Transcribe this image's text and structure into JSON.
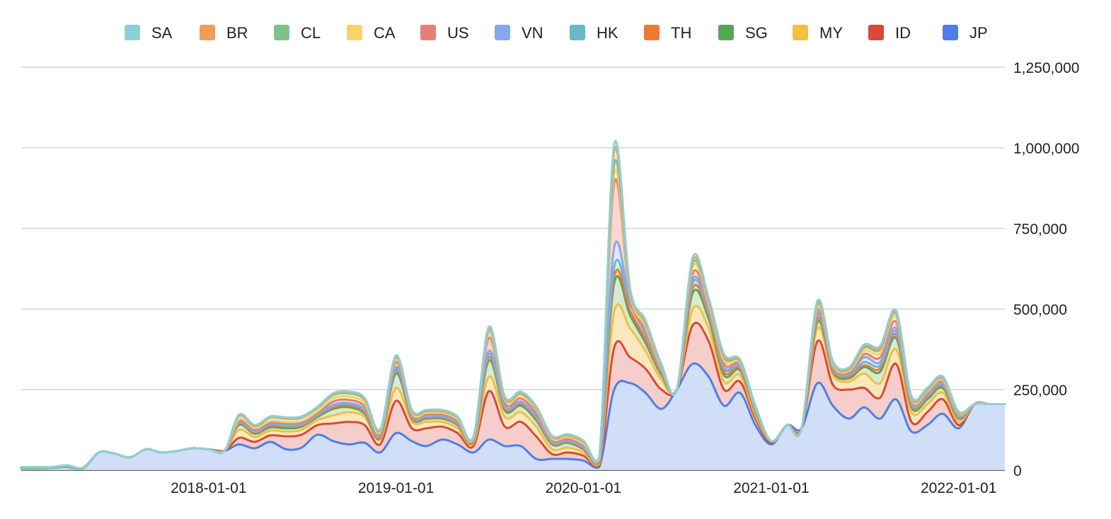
{
  "chart_data": {
    "type": "area",
    "stacked": true,
    "smooth": true,
    "title": "",
    "xlabel": "",
    "ylabel": "",
    "y_axis_position": "right",
    "ylim": [
      0,
      1250000
    ],
    "y_ticks": [
      {
        "value": 0,
        "label": "0"
      },
      {
        "value": 250000,
        "label": "250,000"
      },
      {
        "value": 500000,
        "label": "500,000"
      },
      {
        "value": 750000,
        "label": "750,000"
      },
      {
        "value": 1000000,
        "label": "1,000,000"
      },
      {
        "value": 1250000,
        "label": "1,250,000"
      }
    ],
    "x_ticks": [
      {
        "value": "2018-01-01",
        "label": "2018-01-01"
      },
      {
        "value": "2019-01-01",
        "label": "2019-01-01"
      },
      {
        "value": "2020-01-01",
        "label": "2020-01-01"
      },
      {
        "value": "2021-01-01",
        "label": "2021-01-01"
      },
      {
        "value": "2022-01-01",
        "label": "2022-01-01"
      }
    ],
    "xlim": [
      "2017-01-01",
      "2022-04-01"
    ],
    "grid": true,
    "legend_position": "top",
    "legend_order": [
      "SA",
      "BR",
      "CL",
      "CA",
      "US",
      "VN",
      "HK",
      "TH",
      "SG",
      "MY",
      "ID",
      "JP"
    ],
    "x": [
      "2017-01-01",
      "2017-02-01",
      "2017-03-01",
      "2017-04-01",
      "2017-05-01",
      "2017-06-01",
      "2017-07-01",
      "2017-08-01",
      "2017-09-01",
      "2017-10-01",
      "2017-11-01",
      "2017-12-01",
      "2018-01-01",
      "2018-02-01",
      "2018-03-01",
      "2018-04-01",
      "2018-05-01",
      "2018-06-01",
      "2018-07-01",
      "2018-08-01",
      "2018-09-01",
      "2018-10-01",
      "2018-11-01",
      "2018-12-01",
      "2019-01-01",
      "2019-02-01",
      "2019-03-01",
      "2019-04-01",
      "2019-05-01",
      "2019-06-01",
      "2019-07-01",
      "2019-08-01",
      "2019-09-01",
      "2019-10-01",
      "2019-11-01",
      "2019-12-01",
      "2020-01-01",
      "2020-02-01",
      "2020-03-01",
      "2020-04-01",
      "2020-05-01",
      "2020-06-01",
      "2020-07-01",
      "2020-08-01",
      "2020-09-01",
      "2020-10-01",
      "2020-11-01",
      "2020-12-01",
      "2021-01-01",
      "2021-02-01",
      "2021-03-01",
      "2021-04-01",
      "2021-05-01",
      "2021-06-01",
      "2021-07-01",
      "2021-08-01",
      "2021-09-01",
      "2021-10-01",
      "2021-11-01",
      "2021-12-01",
      "2022-01-01",
      "2022-02-01",
      "2022-03-01",
      "2022-04-01"
    ],
    "series": [
      {
        "name": "JP",
        "color": "#4f7ee8",
        "fill": "#c9d8f7",
        "values": [
          5000,
          5000,
          7000,
          10000,
          5000,
          55000,
          52000,
          40000,
          65000,
          55000,
          60000,
          68000,
          65000,
          60000,
          80000,
          68000,
          88000,
          65000,
          70000,
          110000,
          90000,
          80000,
          85000,
          55000,
          115000,
          90000,
          75000,
          95000,
          80000,
          55000,
          95000,
          75000,
          75000,
          35000,
          35000,
          35000,
          30000,
          10000,
          250000,
          270000,
          240000,
          190000,
          250000,
          330000,
          290000,
          200000,
          240000,
          140000,
          80000,
          140000,
          130000,
          270000,
          200000,
          160000,
          195000,
          160000,
          220000,
          120000,
          140000,
          175000,
          130000,
          205000,
          205000,
          205000
        ]
      },
      {
        "name": "ID",
        "color": "#d84a38",
        "fill": "#f3c6c2",
        "values": [
          0,
          0,
          0,
          2000,
          0,
          0,
          0,
          0,
          0,
          0,
          0,
          0,
          0,
          0,
          20000,
          20000,
          20000,
          40000,
          40000,
          30000,
          55000,
          70000,
          55000,
          25000,
          100000,
          40000,
          55000,
          40000,
          35000,
          20000,
          150000,
          60000,
          75000,
          70000,
          15000,
          20000,
          15000,
          5000,
          130000,
          80000,
          75000,
          60000,
          0,
          120000,
          110000,
          50000,
          35000,
          20000,
          5000,
          0,
          0,
          130000,
          65000,
          90000,
          60000,
          65000,
          110000,
          30000,
          40000,
          45000,
          10000,
          0,
          0,
          0
        ]
      },
      {
        "name": "MY",
        "color": "#f2bf42",
        "fill": "#f8e4b4",
        "values": [
          0,
          0,
          0,
          0,
          0,
          0,
          0,
          0,
          0,
          0,
          0,
          0,
          0,
          0,
          25000,
          15000,
          15000,
          15000,
          15000,
          15000,
          25000,
          30000,
          25000,
          15000,
          40000,
          20000,
          20000,
          15000,
          15000,
          10000,
          45000,
          30000,
          30000,
          30000,
          15000,
          15000,
          10000,
          5000,
          110000,
          90000,
          55000,
          30000,
          0,
          50000,
          40000,
          25000,
          20000,
          10000,
          5000,
          0,
          0,
          40000,
          30000,
          25000,
          45000,
          45000,
          45000,
          30000,
          25000,
          20000,
          10000,
          0,
          0,
          0
        ]
      },
      {
        "name": "SG",
        "color": "#55a557",
        "fill": "#cfe6cd",
        "values": [
          0,
          0,
          0,
          0,
          0,
          0,
          0,
          0,
          0,
          0,
          0,
          0,
          0,
          0,
          15000,
          10000,
          10000,
          10000,
          10000,
          10000,
          20000,
          15000,
          10000,
          5000,
          45000,
          10000,
          10000,
          10000,
          10000,
          5000,
          50000,
          20000,
          20000,
          20000,
          15000,
          15000,
          10000,
          5000,
          90000,
          40000,
          25000,
          15000,
          0,
          50000,
          30000,
          20000,
          15000,
          10000,
          0,
          0,
          0,
          20000,
          10000,
          10000,
          20000,
          35000,
          35000,
          15000,
          15000,
          15000,
          10000,
          0,
          0,
          0
        ]
      },
      {
        "name": "TH",
        "color": "#ee7932",
        "fill": "#f8d4b9",
        "values": [
          0,
          0,
          0,
          0,
          0,
          0,
          0,
          0,
          0,
          0,
          0,
          0,
          0,
          0,
          3000,
          3000,
          5000,
          5000,
          3000,
          3000,
          5000,
          5000,
          5000,
          3000,
          10000,
          3000,
          3000,
          3000,
          3000,
          2000,
          10000,
          5000,
          5000,
          5000,
          3000,
          3000,
          3000,
          2000,
          20000,
          15000,
          10000,
          5000,
          0,
          15000,
          10000,
          10000,
          5000,
          3000,
          0,
          0,
          0,
          10000,
          5000,
          5000,
          5000,
          10000,
          10000,
          5000,
          5000,
          5000,
          3000,
          0,
          0,
          0
        ]
      },
      {
        "name": "HK",
        "color": "#6ab8c8",
        "fill": "#d3ebef",
        "values": [
          0,
          0,
          0,
          0,
          0,
          0,
          0,
          0,
          0,
          0,
          0,
          0,
          0,
          0,
          3000,
          3000,
          3000,
          3000,
          3000,
          3000,
          5000,
          5000,
          5000,
          3000,
          5000,
          3000,
          3000,
          3000,
          3000,
          2000,
          10000,
          5000,
          5000,
          5000,
          3000,
          3000,
          3000,
          2000,
          30000,
          20000,
          15000,
          5000,
          0,
          15000,
          10000,
          10000,
          5000,
          3000,
          0,
          0,
          0,
          10000,
          5000,
          5000,
          10000,
          10000,
          10000,
          5000,
          5000,
          5000,
          3000,
          0,
          0,
          0
        ]
      },
      {
        "name": "VN",
        "color": "#86a7f0",
        "fill": "#dbe5fa",
        "values": [
          0,
          0,
          0,
          0,
          0,
          0,
          0,
          0,
          0,
          0,
          0,
          0,
          0,
          0,
          2000,
          2000,
          2000,
          2000,
          2000,
          2000,
          3000,
          3000,
          3000,
          2000,
          5000,
          2000,
          2000,
          2000,
          2000,
          1000,
          10000,
          3000,
          3000,
          3000,
          2000,
          2000,
          2000,
          1000,
          60000,
          5000,
          5000,
          3000,
          0,
          10000,
          5000,
          5000,
          3000,
          2000,
          0,
          0,
          0,
          5000,
          3000,
          3000,
          15000,
          10000,
          10000,
          5000,
          5000,
          5000,
          3000,
          0,
          0,
          0
        ]
      },
      {
        "name": "US",
        "color": "#e58076",
        "fill": "#f6d0cb",
        "values": [
          0,
          0,
          0,
          0,
          0,
          0,
          0,
          0,
          0,
          0,
          0,
          0,
          0,
          0,
          5000,
          5000,
          5000,
          5000,
          5000,
          5000,
          10000,
          10000,
          10000,
          5000,
          15000,
          5000,
          5000,
          5000,
          5000,
          3000,
          40000,
          10000,
          10000,
          10000,
          5000,
          5000,
          5000,
          3000,
          200000,
          15000,
          10000,
          5000,
          0,
          20000,
          10000,
          10000,
          5000,
          3000,
          0,
          0,
          0,
          10000,
          5000,
          5000,
          10000,
          15000,
          20000,
          5000,
          5000,
          5000,
          3000,
          0,
          0,
          0
        ]
      },
      {
        "name": "CA",
        "color": "#f6d46b",
        "fill": "#fbecc2",
        "values": [
          0,
          0,
          0,
          0,
          0,
          0,
          0,
          0,
          0,
          0,
          0,
          0,
          0,
          0,
          5000,
          5000,
          5000,
          5000,
          5000,
          5000,
          10000,
          10000,
          10000,
          5000,
          10000,
          5000,
          5000,
          5000,
          5000,
          3000,
          15000,
          10000,
          10000,
          10000,
          5000,
          5000,
          5000,
          3000,
          30000,
          10000,
          10000,
          5000,
          0,
          20000,
          10000,
          10000,
          5000,
          3000,
          0,
          0,
          0,
          10000,
          5000,
          5000,
          10000,
          15000,
          15000,
          5000,
          5000,
          5000,
          3000,
          0,
          0,
          0
        ]
      },
      {
        "name": "CL",
        "color": "#80c18a",
        "fill": "#d9eedc",
        "values": [
          0,
          0,
          0,
          0,
          0,
          0,
          0,
          0,
          0,
          0,
          0,
          0,
          0,
          0,
          10000,
          5000,
          10000,
          10000,
          10000,
          10000,
          10000,
          10000,
          10000,
          5000,
          5000,
          5000,
          5000,
          5000,
          5000,
          3000,
          10000,
          5000,
          5000,
          5000,
          5000,
          5000,
          5000,
          3000,
          30000,
          10000,
          10000,
          5000,
          0,
          10000,
          10000,
          10000,
          5000,
          3000,
          0,
          0,
          0,
          10000,
          5000,
          5000,
          10000,
          10000,
          10000,
          5000,
          5000,
          5000,
          3000,
          0,
          0,
          0
        ]
      },
      {
        "name": "BR",
        "color": "#f29c5a",
        "fill": "#f9dcc4",
        "values": [
          5000,
          5000,
          3000,
          3000,
          3000,
          0,
          0,
          0,
          0,
          0,
          0,
          0,
          0,
          0,
          2000,
          2000,
          2000,
          2000,
          2000,
          2000,
          3000,
          3000,
          3000,
          2000,
          3000,
          2000,
          2000,
          2000,
          2000,
          1000,
          5000,
          3000,
          3000,
          3000,
          2000,
          2000,
          2000,
          1000,
          40000,
          5000,
          5000,
          3000,
          0,
          10000,
          5000,
          5000,
          3000,
          2000,
          0,
          0,
          0,
          5000,
          3000,
          3000,
          5000,
          5000,
          5000,
          3000,
          3000,
          3000,
          2000,
          0,
          0,
          0
        ]
      },
      {
        "name": "SA",
        "color": "#8ecfd6",
        "fill": "#ddf0f2",
        "values": [
          0,
          0,
          0,
          0,
          0,
          0,
          0,
          0,
          0,
          0,
          0,
          0,
          0,
          0,
          2000,
          2000,
          2000,
          2000,
          2000,
          2000,
          3000,
          3000,
          3000,
          2000,
          3000,
          2000,
          2000,
          2000,
          2000,
          1000,
          5000,
          3000,
          3000,
          3000,
          2000,
          2000,
          2000,
          1000,
          20000,
          5000,
          5000,
          3000,
          0,
          10000,
          5000,
          5000,
          3000,
          2000,
          0,
          0,
          0,
          5000,
          3000,
          3000,
          5000,
          5000,
          5000,
          3000,
          3000,
          3000,
          2000,
          0,
          0,
          0
        ]
      }
    ]
  }
}
